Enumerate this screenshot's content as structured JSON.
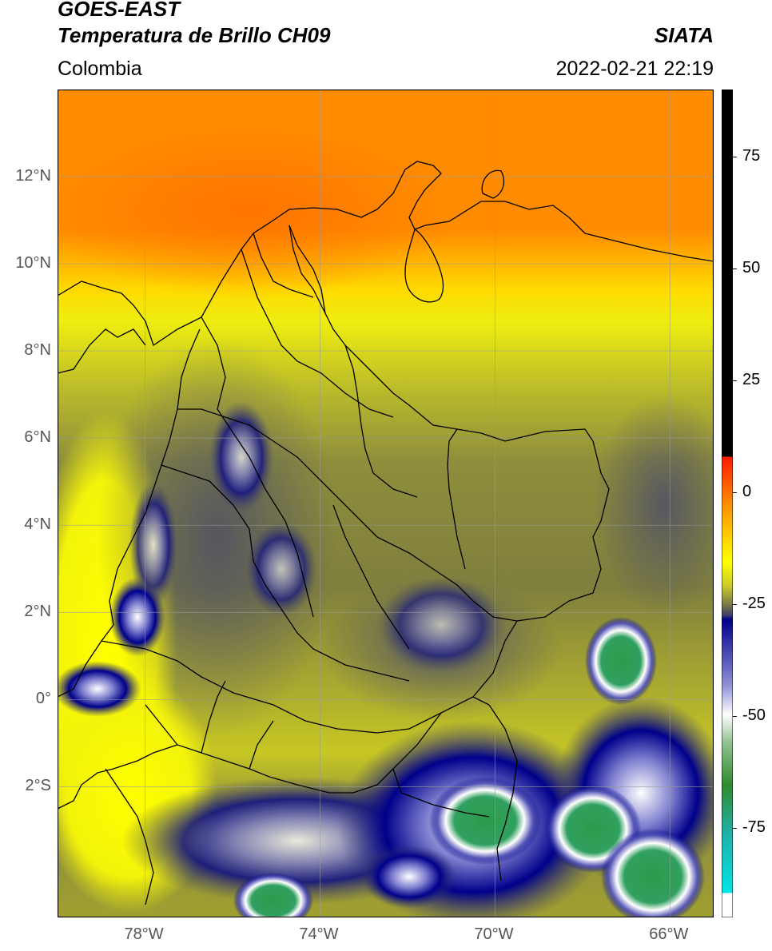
{
  "header": {
    "satellite": "GOES-EAST",
    "product": "Temperatura de Brillo CH09",
    "region": "Colombia",
    "agency": "SIATA",
    "datetime": "2022-02-21 22:19"
  },
  "map": {
    "lon_range": [
      -80,
      -65
    ],
    "lat_range": [
      -5,
      14
    ],
    "lat_ticks": [
      {
        "value": 12,
        "label": "12°N"
      },
      {
        "value": 10,
        "label": "10°N"
      },
      {
        "value": 8,
        "label": "8°N"
      },
      {
        "value": 6,
        "label": "6°N"
      },
      {
        "value": 4,
        "label": "4°N"
      },
      {
        "value": 2,
        "label": "2°N"
      },
      {
        "value": 0,
        "label": "0°"
      },
      {
        "value": -2,
        "label": "2°S"
      }
    ],
    "lon_ticks": [
      {
        "value": -78,
        "label": "78°W"
      },
      {
        "value": -74,
        "label": "74°W"
      },
      {
        "value": -70,
        "label": "70°W"
      },
      {
        "value": -66,
        "label": "66°W"
      }
    ]
  },
  "colorbar": {
    "range": [
      -95,
      90
    ],
    "ticks": [
      {
        "value": 75,
        "label": "75"
      },
      {
        "value": 50,
        "label": "50"
      },
      {
        "value": 25,
        "label": "25"
      },
      {
        "value": 0,
        "label": "0"
      },
      {
        "value": -25,
        "label": "-25"
      },
      {
        "value": -50,
        "label": "-50"
      },
      {
        "value": -75,
        "label": "-75"
      }
    ],
    "colors": {
      "above_8": "#000000",
      "red": "#ff1a00",
      "orange": "#ff8c00",
      "yellow": "#ffff00",
      "olive": "#7d7d3a",
      "navy": "#00008b",
      "white": "#ffffff",
      "green": "#2e8b2e",
      "teal": "#20b2aa",
      "cyan": "#00e5e5"
    }
  }
}
